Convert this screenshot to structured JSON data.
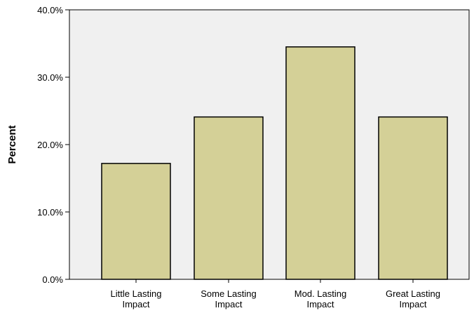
{
  "chart_data": {
    "type": "bar",
    "categories": [
      [
        "Little Lasting",
        "Impact"
      ],
      [
        "Some Lasting",
        "Impact"
      ],
      [
        "Mod. Lasting",
        "Impact"
      ],
      [
        "Great Lasting",
        "Impact"
      ]
    ],
    "values": [
      17.2,
      24.1,
      34.5,
      24.1
    ],
    "ylabel": "Percent",
    "ylim": [
      0,
      40
    ],
    "yticks": [
      0,
      10,
      20,
      30,
      40
    ],
    "ytick_labels": [
      "0.0%",
      "10.0%",
      "20.0%",
      "30.0%",
      "40.0%"
    ],
    "grid": false,
    "colors": {
      "bar_fill": "#d4d097",
      "bar_stroke": "#000000",
      "plot_background": "#f0f0f0"
    }
  }
}
